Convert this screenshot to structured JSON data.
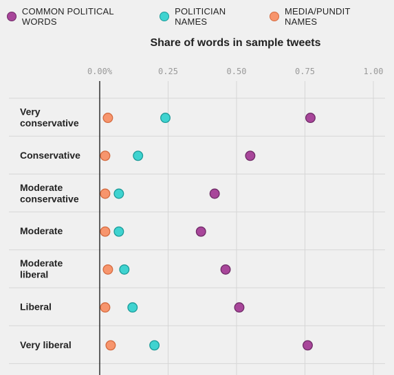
{
  "legend": [
    {
      "label": "COMMON POLITICAL WORDS",
      "color": "#a8469a"
    },
    {
      "label": "POLITICIAN NAMES",
      "color": "#3fd3d0"
    },
    {
      "label": "MEDIA/PUNDIT NAMES",
      "color": "#f7956d"
    }
  ],
  "colors": {
    "political": "#a8469a",
    "political_stroke": "#6e2a66",
    "politician": "#3fd3d0",
    "politician_stroke": "#1a9a98",
    "media": "#f7956d",
    "media_stroke": "#d46a3e"
  },
  "chart_data": {
    "type": "scatter",
    "title": "Share of words in sample tweets",
    "x_ticks": [
      "0.00%",
      "0.25",
      "0.50",
      "0.75",
      "1.00"
    ],
    "xlim": [
      0,
      1
    ],
    "categories": [
      [
        "Very",
        "conservative"
      ],
      [
        "Conservative"
      ],
      [
        "Moderate",
        "conservative"
      ],
      [
        "Moderate"
      ],
      [
        "Moderate",
        "liberal"
      ],
      [
        "Liberal"
      ],
      [
        "Very liberal"
      ]
    ],
    "series": [
      {
        "name": "COMMON POLITICAL WORDS",
        "key": "political",
        "values": [
          0.77,
          0.55,
          0.42,
          0.37,
          0.46,
          0.51,
          0.76
        ]
      },
      {
        "name": "POLITICIAN NAMES",
        "key": "politician",
        "values": [
          0.24,
          0.14,
          0.07,
          0.07,
          0.09,
          0.12,
          0.2
        ]
      },
      {
        "name": "MEDIA/PUNDIT NAMES",
        "key": "media",
        "values": [
          0.03,
          0.02,
          0.02,
          0.02,
          0.03,
          0.02,
          0.04
        ]
      }
    ],
    "grid": true,
    "legend_position": "top"
  }
}
